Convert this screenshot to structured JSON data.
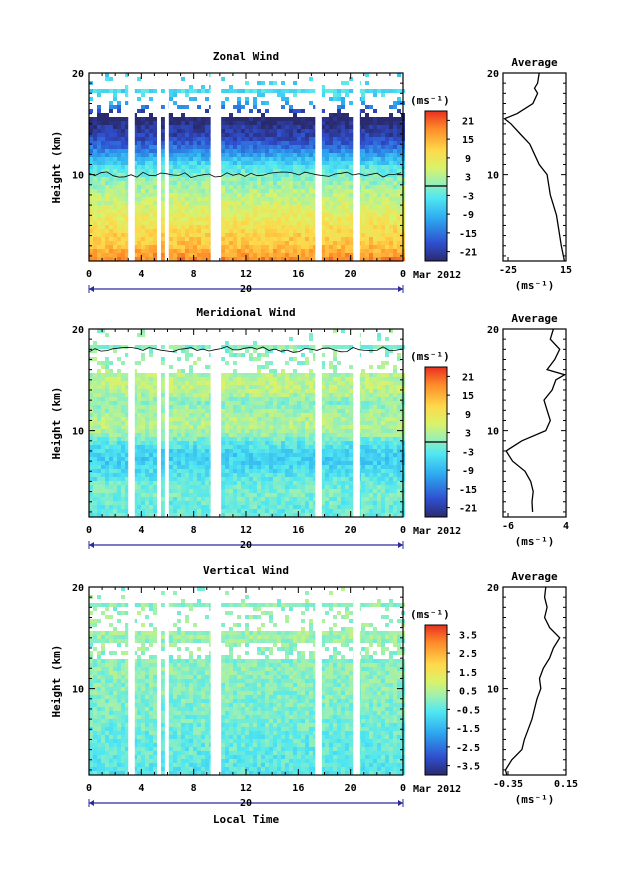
{
  "shared": {
    "x_ticks": [
      "0",
      "4",
      "8",
      "12",
      "16",
      "20",
      "0"
    ],
    "date_day": "20",
    "date_label": "Mar 2012",
    "xlabel": "Local Time",
    "ylabel": "Height (km)",
    "y_ticks": [
      "20",
      "10"
    ],
    "average_title": "Average",
    "unit": "(ms⁻¹)"
  },
  "panels": [
    {
      "title": "Zonal Wind",
      "colorbar_ticks": [
        "21",
        "15",
        "9",
        "3",
        "-3",
        "-9",
        "-15",
        "-21"
      ],
      "profile_xticks": [
        "-25",
        "15"
      ],
      "profile_range": [
        -25,
        15
      ]
    },
    {
      "title": "Meridional Wind",
      "colorbar_ticks": [
        "21",
        "15",
        "9",
        "3",
        "-3",
        "-9",
        "-15",
        "-21"
      ],
      "profile_xticks": [
        "-6",
        "4"
      ],
      "profile_range": [
        -6,
        4
      ]
    },
    {
      "title": "Vertical Wind",
      "colorbar_ticks": [
        "3.5",
        "2.5",
        "1.5",
        "0.5",
        "-0.5",
        "-1.5",
        "-2.5",
        "-3.5"
      ],
      "profile_xticks": [
        "-0.35",
        "0.15"
      ],
      "profile_range": [
        -0.35,
        0.15
      ]
    }
  ],
  "chart_data": [
    {
      "type": "heatmap",
      "title": "Zonal Wind",
      "xlabel": "Local Time",
      "ylabel": "Height (km)",
      "xlim": [
        0,
        24
      ],
      "ylim": [
        1.5,
        20
      ],
      "colorbar_label": "(ms⁻¹)",
      "colorbar_range": [
        -24,
        24
      ],
      "contour_levels": [
        0
      ],
      "data_gaps_hours": [
        [
          3.0,
          3.5
        ],
        [
          5.2,
          5.5
        ],
        [
          5.8,
          6.1
        ],
        [
          9.3,
          10.1
        ],
        [
          17.3,
          17.8
        ],
        [
          20.2,
          20.7
        ]
      ],
      "height_km": [
        2,
        3,
        4,
        5,
        6,
        7,
        8,
        9,
        10,
        11,
        12,
        13,
        14,
        15,
        16,
        17,
        18
      ],
      "mean_wind_ms": [
        18,
        14,
        12,
        10,
        8,
        6,
        4,
        2,
        0,
        -4,
        -10,
        -16,
        -20,
        -22,
        -26,
        -12,
        -5
      ]
    },
    {
      "type": "line",
      "title": "Average",
      "xlabel": "(ms⁻¹)",
      "xlim": [
        -25,
        15
      ],
      "ylim": [
        1.5,
        20
      ],
      "x": [
        14,
        12,
        11,
        10,
        9,
        7,
        5,
        4,
        3,
        -2,
        -5,
        -8,
        -14,
        -20,
        -24,
        -16,
        -6,
        -3,
        -5,
        -3,
        -2
      ],
      "y": [
        1.5,
        3,
        4,
        5,
        6,
        7,
        8,
        9,
        10,
        11,
        12,
        13,
        14,
        15,
        15.5,
        16,
        17,
        18,
        18.5,
        19,
        20
      ]
    },
    {
      "type": "heatmap",
      "title": "Meridional Wind",
      "xlabel": "Local Time",
      "ylabel": "Height (km)",
      "xlim": [
        0,
        24
      ],
      "ylim": [
        1.5,
        20
      ],
      "colorbar_label": "(ms⁻¹)",
      "colorbar_range": [
        -24,
        24
      ],
      "contour_levels": [
        0
      ],
      "data_gaps_hours": [
        [
          3.0,
          3.5
        ],
        [
          5.2,
          5.5
        ],
        [
          5.8,
          6.1
        ],
        [
          9.3,
          10.1
        ],
        [
          17.3,
          17.8
        ],
        [
          20.2,
          20.7
        ]
      ],
      "height_km": [
        2,
        3,
        4,
        5,
        6,
        7,
        8,
        9,
        10,
        11,
        12,
        13,
        14,
        15,
        16,
        17,
        18
      ],
      "mean_wind_ms": [
        -2,
        -2,
        -1,
        -2,
        -4,
        -6,
        -6,
        -3,
        2,
        3,
        2,
        0,
        3,
        4,
        2,
        1,
        0
      ]
    },
    {
      "type": "line",
      "title": "Average",
      "xlabel": "(ms⁻¹)",
      "xlim": [
        -6,
        4
      ],
      "ylim": [
        1.5,
        20
      ],
      "x": [
        -1.3,
        -1.4,
        -1.2,
        -1.6,
        -2.5,
        -4.5,
        -5.5,
        -3.0,
        0.8,
        1.5,
        1.0,
        0.5,
        1.8,
        2.4,
        3.8,
        1.0,
        2.2,
        3.0,
        1.5,
        2.0
      ],
      "y": [
        2,
        3,
        4,
        5,
        6,
        7,
        8,
        9,
        10,
        11,
        12,
        13,
        14,
        15,
        15.5,
        16,
        17,
        18,
        19,
        20
      ]
    },
    {
      "type": "heatmap",
      "title": "Vertical Wind",
      "xlabel": "Local Time",
      "ylabel": "Height (km)",
      "xlim": [
        0,
        24
      ],
      "ylim": [
        1.5,
        20
      ],
      "colorbar_label": "(ms⁻¹)",
      "colorbar_range": [
        -4,
        4
      ],
      "data_gaps_hours": [
        [
          3.0,
          3.5
        ],
        [
          5.2,
          5.5
        ],
        [
          5.8,
          6.1
        ],
        [
          9.3,
          10.1
        ],
        [
          17.3,
          17.8
        ],
        [
          20.2,
          20.7
        ]
      ],
      "height_km": [
        2,
        3,
        4,
        5,
        6,
        7,
        8,
        9,
        10,
        11,
        12,
        13,
        14,
        15,
        16,
        17,
        18
      ],
      "mean_wind_ms": [
        -0.6,
        -0.5,
        -0.4,
        -0.4,
        -0.3,
        -0.2,
        -0.1,
        -0.1,
        0.0,
        0.0,
        0.1,
        0.0,
        0.1,
        0.2,
        0.3,
        0.2,
        0.1
      ]
    },
    {
      "type": "line",
      "title": "Average",
      "xlabel": "(ms⁻¹)",
      "xlim": [
        -0.35,
        0.15
      ],
      "ylim": [
        1.5,
        20
      ],
      "x": [
        -0.32,
        -0.33,
        -0.28,
        -0.2,
        -0.18,
        -0.15,
        -0.12,
        -0.1,
        -0.08,
        -0.05,
        -0.06,
        -0.03,
        0.02,
        0.05,
        0.1,
        0.02,
        -0.02,
        0.0,
        -0.02,
        -0.01
      ],
      "y": [
        1.5,
        2,
        3,
        4,
        5,
        6,
        7,
        8,
        9,
        10,
        11,
        12,
        13,
        14,
        15,
        16,
        17,
        18,
        19,
        20
      ]
    }
  ]
}
